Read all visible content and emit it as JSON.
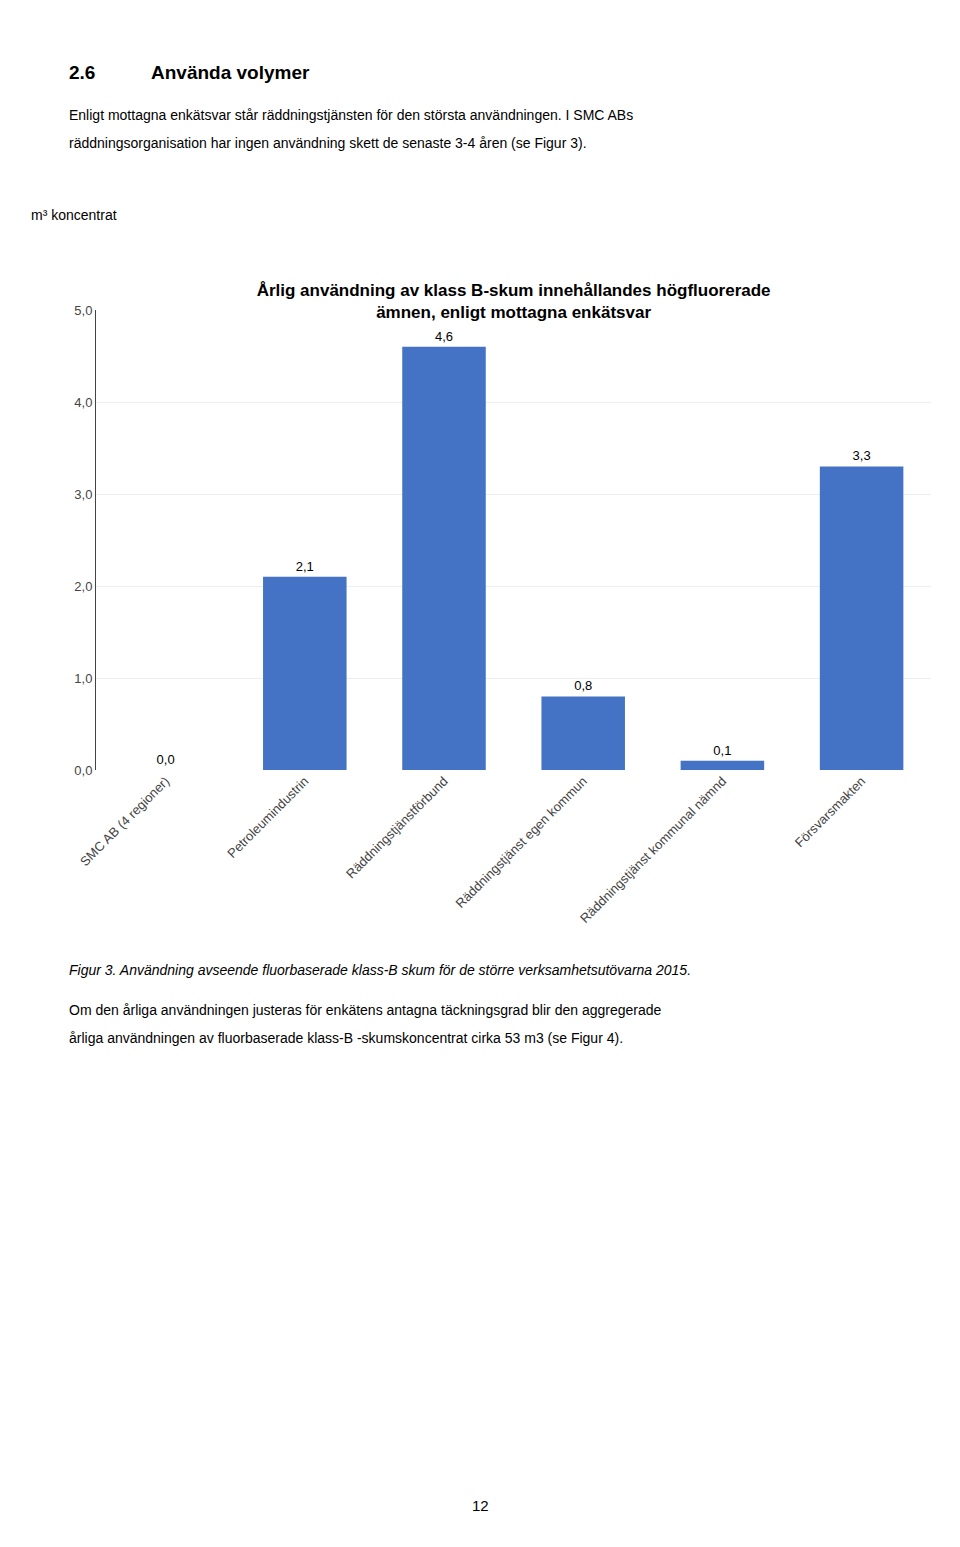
{
  "chart_data": {
    "type": "bar",
    "title": "Årlig användning av klass B-skum innehållandes högfluorerade\nämnen, enligt mottagna enkätsvar",
    "ylabel": "m³ koncentrat",
    "categories": [
      "SMC AB (4 regioner)",
      "Petroleumindustrin",
      "Räddningstjänstförbund",
      "Räddningstjänst egen kommun",
      "Räddningstjänst kommunal nämnd",
      "Försvarsmakten"
    ],
    "values": [
      0.0,
      2.1,
      4.6,
      0.8,
      0.1,
      3.3
    ],
    "value_labels": [
      "0,0",
      "2,1",
      "4,6",
      "0,8",
      "0,1",
      "3,3"
    ],
    "data_labels": true,
    "color": "#4472C4",
    "ylim": [
      0.0,
      5.0
    ],
    "yticks": [
      {
        "value": 0.0,
        "label": "0,0"
      },
      {
        "value": 1.0,
        "label": "1,0"
      },
      {
        "value": 2.0,
        "label": "2,0"
      },
      {
        "value": 3.0,
        "label": "3,0"
      },
      {
        "value": 4.0,
        "label": "4,0"
      },
      {
        "value": 5.0,
        "label": "5,0"
      }
    ],
    "grid": true,
    "annotations": [
      "2.6",
      "Använda volymer",
      "Enligt mottagna enkätsvar står räddningstjänsten för den största användningen. I SMC ABs",
      "räddningsorganisation har ingen användning skett de senaste 3-4 åren (se Figur 3).",
      "Figur 3. Användning avseende fluorbaserade klass-B skum för de större verksamhetsutövarna 2015.",
      "Om den årliga användningen justeras för enkätens antagna täckningsgrad blir den aggregerade",
      "årliga användningen av fluorbaserade klass-B -skumskoncentrat cirka 53 m3 (se Figur 4).",
      "12"
    ]
  }
}
